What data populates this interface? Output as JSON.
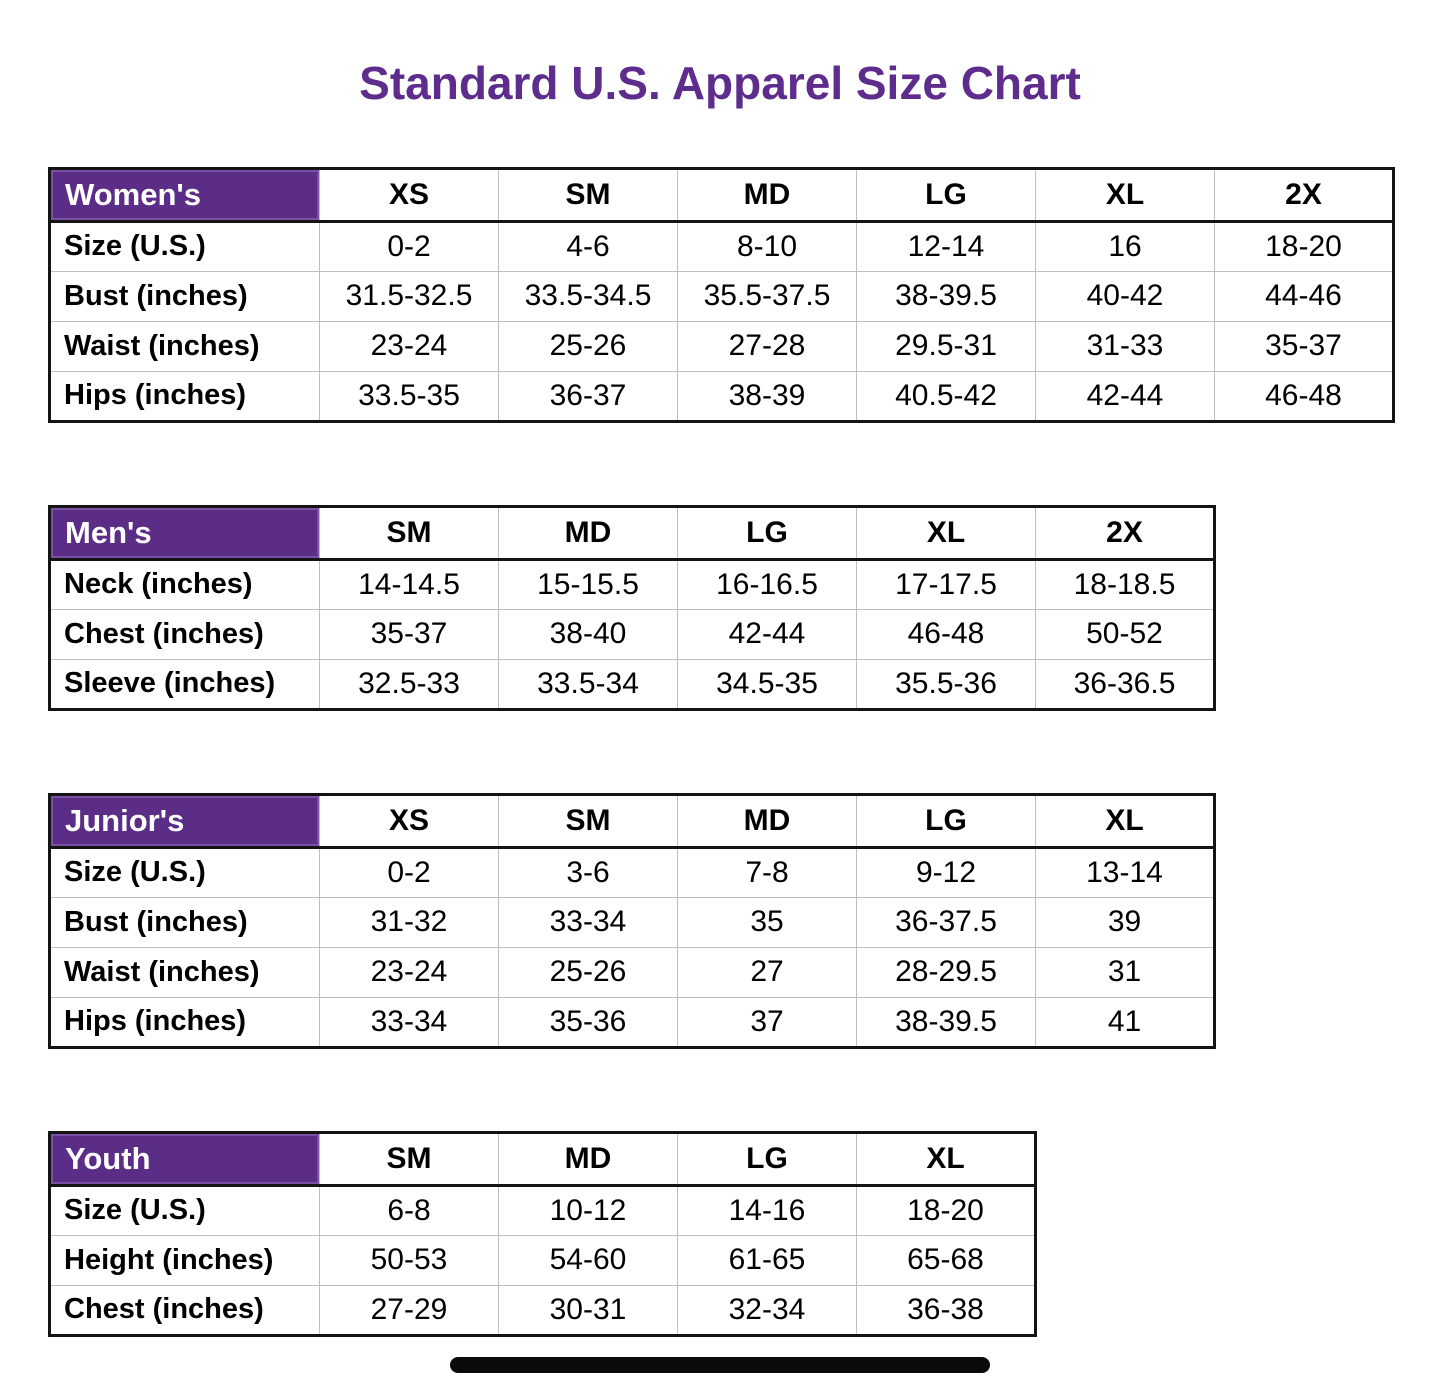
{
  "title": "Standard U.S. Apparel Size Chart",
  "colors": {
    "title_text": "#5d2c8c",
    "header_cell_bg": "#5b2d86",
    "header_cell_inner_border": "#7a50a3",
    "header_cell_text": "#ffffff",
    "grid_line": "#bfbfbf",
    "outer_border": "#141414",
    "bottom_bar": "#0a0a0a"
  },
  "layout_hints": {
    "label_col_width": 270,
    "data_col_width": 179
  },
  "tables": [
    {
      "id": "womens",
      "header_label": "Women's",
      "columns": [
        "XS",
        "SM",
        "MD",
        "LG",
        "XL",
        "2X"
      ],
      "rows": [
        {
          "label": "Size (U.S.)",
          "values": [
            "0-2",
            "4-6",
            "8-10",
            "12-14",
            "16",
            "18-20"
          ]
        },
        {
          "label": "Bust (inches)",
          "values": [
            "31.5-32.5",
            "33.5-34.5",
            "35.5-37.5",
            "38-39.5",
            "40-42",
            "44-46"
          ]
        },
        {
          "label": "Waist (inches)",
          "values": [
            "23-24",
            "25-26",
            "27-28",
            "29.5-31",
            "31-33",
            "35-37"
          ]
        },
        {
          "label": "Hips (inches)",
          "values": [
            "33.5-35",
            "36-37",
            "38-39",
            "40.5-42",
            "42-44",
            "46-48"
          ]
        }
      ]
    },
    {
      "id": "mens",
      "header_label": "Men's",
      "columns": [
        "SM",
        "MD",
        "LG",
        "XL",
        "2X"
      ],
      "rows": [
        {
          "label": "Neck (inches)",
          "values": [
            "14-14.5",
            "15-15.5",
            "16-16.5",
            "17-17.5",
            "18-18.5"
          ]
        },
        {
          "label": "Chest (inches)",
          "values": [
            "35-37",
            "38-40",
            "42-44",
            "46-48",
            "50-52"
          ]
        },
        {
          "label": "Sleeve (inches)",
          "values": [
            "32.5-33",
            "33.5-34",
            "34.5-35",
            "35.5-36",
            "36-36.5"
          ]
        }
      ]
    },
    {
      "id": "juniors",
      "header_label": "Junior's",
      "columns": [
        "XS",
        "SM",
        "MD",
        "LG",
        "XL"
      ],
      "rows": [
        {
          "label": "Size (U.S.)",
          "values": [
            "0-2",
            "3-6",
            "7-8",
            "9-12",
            "13-14"
          ]
        },
        {
          "label": "Bust (inches)",
          "values": [
            "31-32",
            "33-34",
            "35",
            "36-37.5",
            "39"
          ]
        },
        {
          "label": "Waist (inches)",
          "values": [
            "23-24",
            "25-26",
            "27",
            "28-29.5",
            "31"
          ]
        },
        {
          "label": "Hips (inches)",
          "values": [
            "33-34",
            "35-36",
            "37",
            "38-39.5",
            "41"
          ]
        }
      ]
    },
    {
      "id": "youth",
      "header_label": "Youth",
      "columns": [
        "SM",
        "MD",
        "LG",
        "XL"
      ],
      "rows": [
        {
          "label": "Size (U.S.)",
          "values": [
            "6-8",
            "10-12",
            "14-16",
            "18-20"
          ]
        },
        {
          "label": "Height (inches)",
          "values": [
            "50-53",
            "54-60",
            "61-65",
            "65-68"
          ]
        },
        {
          "label": "Chest (inches)",
          "values": [
            "27-29",
            "30-31",
            "32-34",
            "36-38"
          ]
        }
      ]
    }
  ]
}
